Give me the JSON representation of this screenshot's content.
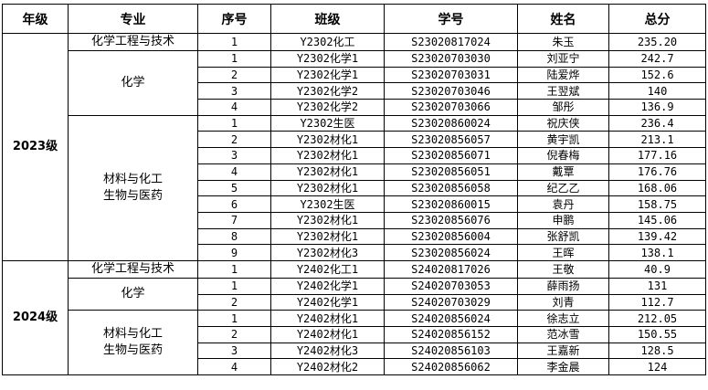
{
  "headers": [
    "年级",
    "专业",
    "序号",
    "班级",
    "学号",
    "姓名",
    "总分"
  ],
  "grades": [
    {
      "grade": "2023级",
      "majors": [
        {
          "major": "化学工程与技术",
          "rows": [
            [
              "1",
              "Y2302化工",
              "S23020817024",
              "朱玉",
              "235.20"
            ]
          ]
        },
        {
          "major": "化学",
          "rows": [
            [
              "1",
              "Y2302化学1",
              "S23020703030",
              "刘亚宁",
              "242.7"
            ],
            [
              "2",
              "Y2302化学1",
              "S23020703031",
              "陆爱烨",
              "152.6"
            ],
            [
              "3",
              "Y2302化学2",
              "S23020703046",
              "王翌斌",
              "140"
            ],
            [
              "4",
              "Y2302化学2",
              "S23020703066",
              "邹彤",
              "136.9"
            ]
          ]
        },
        {
          "major": "材料与化工\n生物与医药",
          "rows": [
            [
              "1",
              "Y2302生医",
              "S23020860024",
              "祝庆侠",
              "236.4"
            ],
            [
              "2",
              "Y2302材化1",
              "S23020856057",
              "黄宇凯",
              "213.1"
            ],
            [
              "3",
              "Y2302材化1",
              "S23020856071",
              "倪春梅",
              "177.16"
            ],
            [
              "4",
              "Y2302材化1",
              "S23020856051",
              "戴覃",
              "176.76"
            ],
            [
              "5",
              "Y2302材化1",
              "S23020856058",
              "纪乙乙",
              "168.06"
            ],
            [
              "6",
              "Y2302生医",
              "S23020860015",
              "袁丹",
              "158.75"
            ],
            [
              "7",
              "Y2302材化1",
              "S23020856076",
              "申鹏",
              "145.06"
            ],
            [
              "8",
              "Y2302材化1",
              "S23020856004",
              "张舒凯",
              "139.42"
            ],
            [
              "9",
              "Y2302材化3",
              "S23020856024",
              "王晖",
              "138.1"
            ]
          ]
        }
      ]
    },
    {
      "grade": "2024级",
      "majors": [
        {
          "major": "化学工程与技术",
          "rows": [
            [
              "1",
              "Y2402化工1",
              "S24020817026",
              "王敬",
              "40.9"
            ]
          ]
        },
        {
          "major": "化学",
          "rows": [
            [
              "1",
              "Y2402化学1",
              "S24020703053",
              "薛雨扬",
              "131"
            ],
            [
              "2",
              "Y2402化学1",
              "S24020703029",
              "刘青",
              "112.7"
            ]
          ]
        },
        {
          "major": "材料与化工\n生物与医药",
          "rows": [
            [
              "1",
              "Y2402材化1",
              "S24020856024",
              "徐志立",
              "212.05"
            ],
            [
              "2",
              "Y2402材化1",
              "S24020856152",
              "范冰雪",
              "150.55"
            ],
            [
              "3",
              "Y2402材化3",
              "S24020856103",
              "王嘉新",
              "128.5"
            ],
            [
              "4",
              "Y2402材化2",
              "S24020856062",
              "李金晨",
              "124"
            ]
          ]
        }
      ]
    }
  ]
}
